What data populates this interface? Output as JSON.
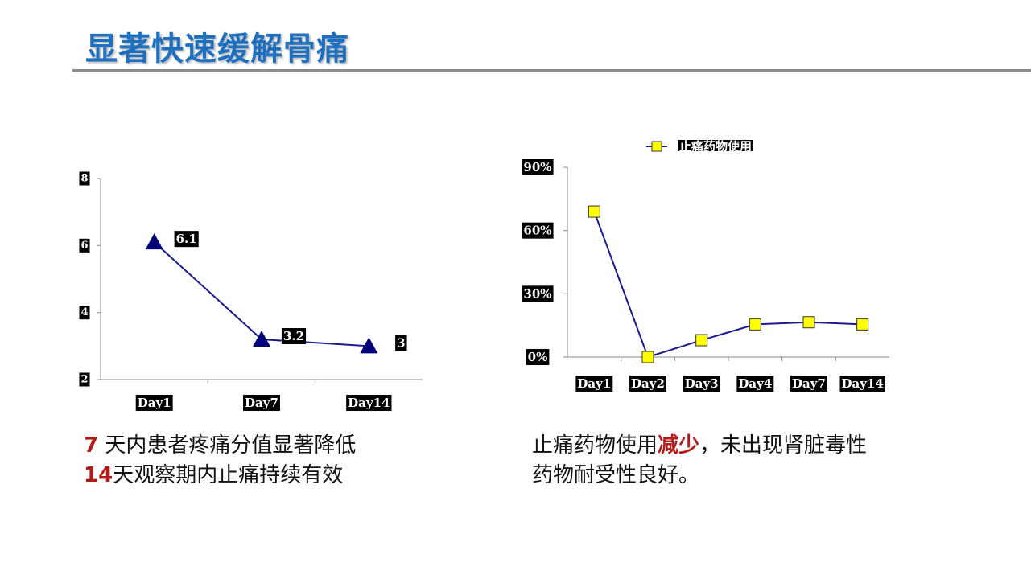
{
  "title": "显著快速缓解骨痛",
  "chart_data": [
    {
      "type": "line",
      "categories": [
        "Day1",
        "Day7",
        "Day14"
      ],
      "series": [
        {
          "values": [
            6.1,
            3.2,
            3
          ]
        }
      ],
      "data_labels": [
        "6.1",
        "3.2",
        "3"
      ],
      "ylim": [
        2,
        8
      ],
      "yticks": [
        "2",
        "4",
        "6",
        "8"
      ],
      "marker": "triangle",
      "colors": {
        "line": "#1a1a8c",
        "marker": "#00007a"
      }
    },
    {
      "type": "line",
      "categories": [
        "Day1",
        "Day2",
        "Day3",
        "Day4",
        "Day7",
        "Day14"
      ],
      "series": [
        {
          "name": "止痛药物使用",
          "values": [
            0.69,
            0.0,
            0.08,
            0.155,
            0.165,
            0.155
          ]
        }
      ],
      "ylim": [
        0,
        0.9
      ],
      "yticks": [
        "0%",
        "30%",
        "60%",
        "90%"
      ],
      "legend": "top",
      "marker": "square",
      "colors": {
        "line": "#1a1a8c",
        "marker": "#ffff00"
      }
    }
  ],
  "captions": {
    "left": {
      "line1": {
        "num": "7",
        "text": " 天内患者疼痛分值显著降低"
      },
      "line2": {
        "num": "14",
        "text": "天观察期内止痛持续有效"
      }
    },
    "right": {
      "line1": {
        "pre": "止痛药物使用",
        "hl": "减少",
        "post": "，未出现肾脏毒性"
      },
      "line2": "药物耐受性良好。"
    }
  }
}
